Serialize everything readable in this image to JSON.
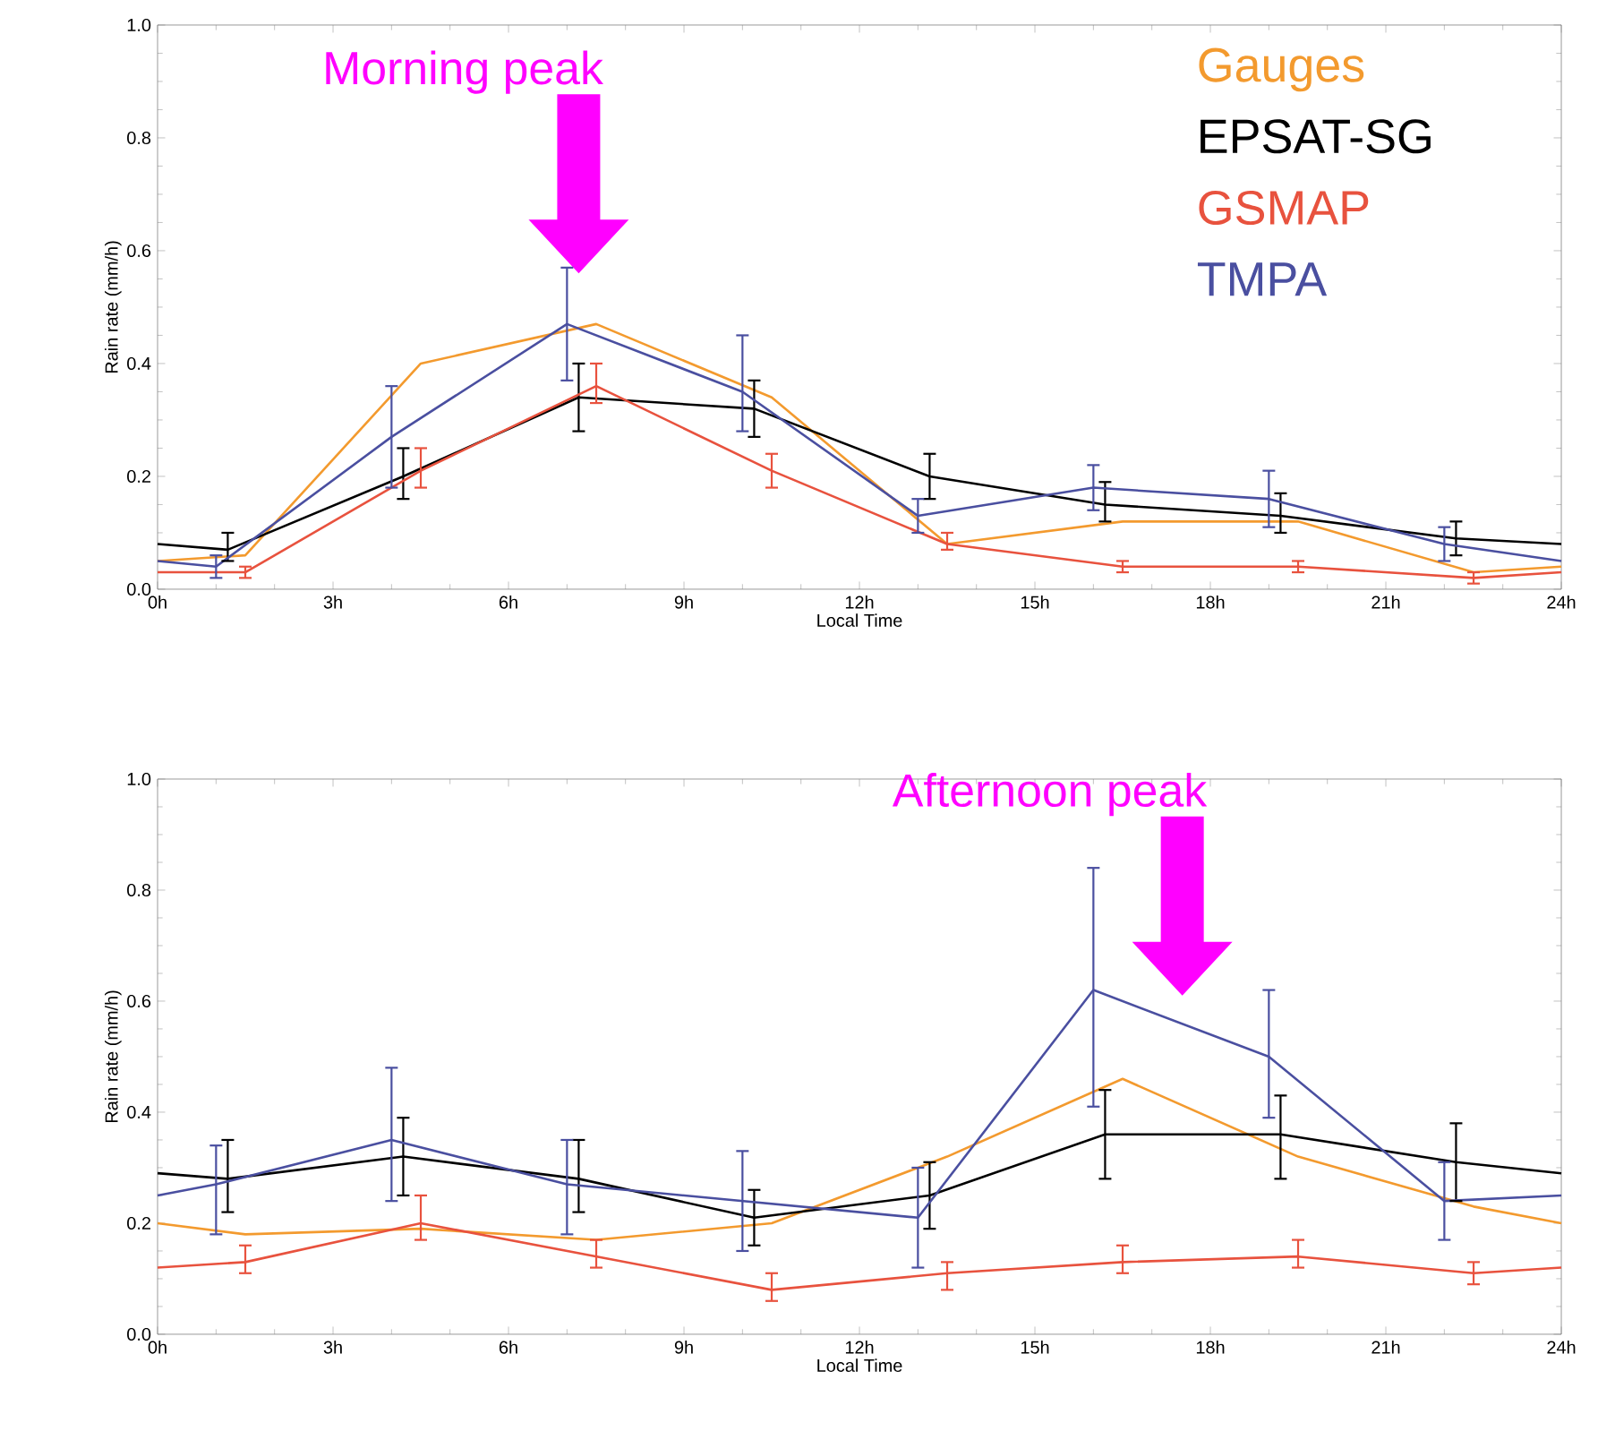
{
  "chart_data": [
    {
      "type": "line",
      "xlabel": "Local Time",
      "ylabel": "Rain rate (mm/h)",
      "xlim": [
        0,
        24
      ],
      "ylim": [
        0,
        1
      ],
      "xticks": [
        {
          "value": 0,
          "label": "0h"
        },
        {
          "value": 3,
          "label": "3h"
        },
        {
          "value": 6,
          "label": "6h"
        },
        {
          "value": 9,
          "label": "9h"
        },
        {
          "value": 12,
          "label": "12h"
        },
        {
          "value": 15,
          "label": "15h"
        },
        {
          "value": 18,
          "label": "18h"
        },
        {
          "value": 21,
          "label": "21h"
        },
        {
          "value": 24,
          "label": "24h"
        }
      ],
      "yticks": [
        {
          "value": 0,
          "label": "0.0"
        },
        {
          "value": 0.2,
          "label": "0.2"
        },
        {
          "value": 0.4,
          "label": "0.4"
        },
        {
          "value": 0.6,
          "label": "0.6"
        },
        {
          "value": 0.8,
          "label": "0.8"
        },
        {
          "value": 1,
          "label": "1.0"
        }
      ],
      "legend": "top right",
      "grid": false,
      "annotations": [
        "Morning peak"
      ],
      "series": [
        {
          "name": "Gauges",
          "color": "#f39a2e",
          "x": [
            0,
            1.5,
            4.5,
            7.5,
            10.5,
            13.5,
            16.5,
            19.5,
            22.5,
            24
          ],
          "values": [
            0.05,
            0.06,
            0.4,
            0.47,
            0.34,
            0.08,
            0.12,
            0.12,
            0.03,
            0.04
          ]
        },
        {
          "name": "EPSAT-SG",
          "color": "#000000",
          "x": [
            0,
            1.2,
            4.2,
            7.2,
            10.2,
            13.2,
            16.2,
            19.2,
            22.2,
            24
          ],
          "values": [
            0.08,
            0.07,
            0.2,
            0.34,
            0.32,
            0.2,
            0.15,
            0.13,
            0.09,
            0.08
          ],
          "errors": [
            null,
            [
              0.05,
              0.1
            ],
            [
              0.16,
              0.25
            ],
            [
              0.28,
              0.4
            ],
            [
              0.27,
              0.37
            ],
            [
              0.16,
              0.24
            ],
            [
              0.12,
              0.19
            ],
            [
              0.1,
              0.17
            ],
            [
              0.06,
              0.12
            ],
            null
          ]
        },
        {
          "name": "GSMAP",
          "color": "#e8523e",
          "x": [
            0,
            1.5,
            4.5,
            7.5,
            10.5,
            13.5,
            16.5,
            19.5,
            22.5,
            24
          ],
          "values": [
            0.03,
            0.03,
            0.21,
            0.36,
            0.21,
            0.08,
            0.04,
            0.04,
            0.02,
            0.03
          ],
          "errors": [
            null,
            [
              0.02,
              0.04
            ],
            [
              0.18,
              0.25
            ],
            [
              0.33,
              0.4
            ],
            [
              0.18,
              0.24
            ],
            [
              0.07,
              0.1
            ],
            [
              0.03,
              0.05
            ],
            [
              0.03,
              0.05
            ],
            [
              0.01,
              0.03
            ],
            null
          ]
        },
        {
          "name": "TMPA",
          "color": "#4a4fa0",
          "x": [
            0,
            1,
            4,
            7,
            10,
            13,
            16,
            19,
            22,
            24
          ],
          "values": [
            0.05,
            0.04,
            0.27,
            0.47,
            0.35,
            0.13,
            0.18,
            0.16,
            0.08,
            0.05
          ],
          "errors": [
            null,
            [
              0.02,
              0.06
            ],
            [
              0.18,
              0.36
            ],
            [
              0.37,
              0.57
            ],
            [
              0.28,
              0.45
            ],
            [
              0.1,
              0.16
            ],
            [
              0.14,
              0.22
            ],
            [
              0.11,
              0.21
            ],
            [
              0.05,
              0.11
            ],
            null
          ]
        }
      ]
    },
    {
      "type": "line",
      "xlabel": "Local Time",
      "ylabel": "Rain rate (mm/h)",
      "xlim": [
        0,
        24
      ],
      "ylim": [
        0,
        1
      ],
      "xticks": [
        {
          "value": 0,
          "label": "0h"
        },
        {
          "value": 3,
          "label": "3h"
        },
        {
          "value": 6,
          "label": "6h"
        },
        {
          "value": 9,
          "label": "9h"
        },
        {
          "value": 12,
          "label": "12h"
        },
        {
          "value": 15,
          "label": "15h"
        },
        {
          "value": 18,
          "label": "18h"
        },
        {
          "value": 21,
          "label": "21h"
        },
        {
          "value": 24,
          "label": "24h"
        }
      ],
      "yticks": [
        {
          "value": 0,
          "label": "0.0"
        },
        {
          "value": 0.2,
          "label": "0.2"
        },
        {
          "value": 0.4,
          "label": "0.4"
        },
        {
          "value": 0.6,
          "label": "0.6"
        },
        {
          "value": 0.8,
          "label": "0.8"
        },
        {
          "value": 1,
          "label": "1.0"
        }
      ],
      "grid": false,
      "annotations": [
        "Afternoon peak"
      ],
      "series": [
        {
          "color": "#f39a2e",
          "x": [
            0,
            1.5,
            4.5,
            7.5,
            10.5,
            13.5,
            16.5,
            19.5,
            22.5,
            24
          ],
          "values": [
            0.2,
            0.18,
            0.19,
            0.17,
            0.2,
            0.32,
            0.46,
            0.32,
            0.23,
            0.2
          ]
        },
        {
          "color": "#000000",
          "x": [
            0,
            1.2,
            4.2,
            7.2,
            10.2,
            13.2,
            16.2,
            19.2,
            22.2,
            24
          ],
          "values": [
            0.29,
            0.28,
            0.32,
            0.28,
            0.21,
            0.25,
            0.36,
            0.36,
            0.31,
            0.29
          ],
          "errors": [
            null,
            [
              0.22,
              0.35
            ],
            [
              0.25,
              0.39
            ],
            [
              0.22,
              0.35
            ],
            [
              0.16,
              0.26
            ],
            [
              0.19,
              0.31
            ],
            [
              0.28,
              0.44
            ],
            [
              0.28,
              0.43
            ],
            [
              0.24,
              0.38
            ],
            null
          ]
        },
        {
          "color": "#e8523e",
          "x": [
            0,
            1.5,
            4.5,
            7.5,
            10.5,
            13.5,
            16.5,
            19.5,
            22.5,
            24
          ],
          "values": [
            0.12,
            0.13,
            0.2,
            0.14,
            0.08,
            0.11,
            0.13,
            0.14,
            0.11,
            0.12
          ],
          "errors": [
            null,
            [
              0.11,
              0.16
            ],
            [
              0.17,
              0.25
            ],
            [
              0.12,
              0.17
            ],
            [
              0.06,
              0.11
            ],
            [
              0.08,
              0.13
            ],
            [
              0.11,
              0.16
            ],
            [
              0.12,
              0.17
            ],
            [
              0.09,
              0.13
            ],
            null
          ]
        },
        {
          "color": "#4a4fa0",
          "x": [
            0,
            1,
            4,
            7,
            10,
            13,
            16,
            19,
            22,
            24
          ],
          "values": [
            0.25,
            0.27,
            0.35,
            0.27,
            0.24,
            0.21,
            0.62,
            0.5,
            0.24,
            0.25
          ],
          "errors": [
            null,
            [
              0.18,
              0.34
            ],
            [
              0.24,
              0.48
            ],
            [
              0.18,
              0.35
            ],
            [
              0.15,
              0.33
            ],
            [
              0.12,
              0.3
            ],
            [
              0.41,
              0.84
            ],
            [
              0.39,
              0.62
            ],
            [
              0.17,
              0.31
            ],
            null
          ]
        }
      ]
    }
  ]
}
